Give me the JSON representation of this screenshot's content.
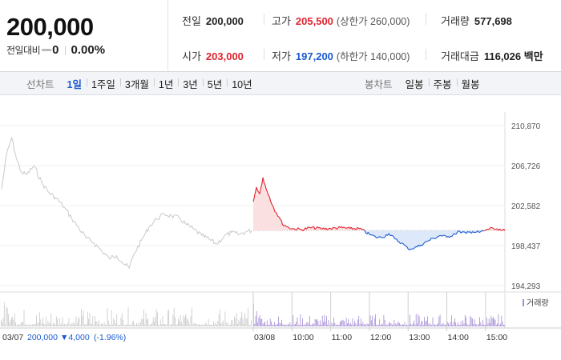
{
  "quote": {
    "price": "200,000",
    "change_label": "전일대비",
    "change_value": "0",
    "change_pct": "0.00%"
  },
  "stats": {
    "prev_close": {
      "label": "전일",
      "value": "200,000"
    },
    "high": {
      "label": "고가",
      "value": "205,500",
      "sub": "(상한가 260,000)"
    },
    "volume": {
      "label": "거래량",
      "value": "577,698"
    },
    "open": {
      "label": "시가",
      "value": "203,000"
    },
    "low": {
      "label": "저가",
      "value": "197,200",
      "sub": "(하한가 140,000)"
    },
    "amount": {
      "label": "거래대금",
      "value": "116,026 백만"
    }
  },
  "tabs": {
    "line_title": "선차트",
    "line_periods": [
      "1일",
      "1주일",
      "3개월",
      "1년",
      "3년",
      "5년",
      "10년"
    ],
    "candle_title": "봉차트",
    "candle_periods": [
      "일봉",
      "주봉",
      "월봉"
    ]
  },
  "chart_data": {
    "type": "line",
    "y_ticks": [
      "210,870",
      "206,726",
      "202,582",
      "198,437",
      "194,293"
    ],
    "ylim": [
      194293,
      210870
    ],
    "reference_price": 200000,
    "x_labels": [
      "03/07",
      "03/08",
      "10:00",
      "11:00",
      "12:00",
      "13:00",
      "14:00",
      "15:00"
    ],
    "prev_day_info": {
      "date": "03/07",
      "price": "200,000",
      "change": "▼4,000",
      "pct": "(-1.96%)"
    },
    "volume_legend": "거래량",
    "prev_day_series": [
      {
        "t": 0,
        "y": 204300
      },
      {
        "t": 0.02,
        "y": 207900
      },
      {
        "t": 0.04,
        "y": 209600
      },
      {
        "t": 0.06,
        "y": 207400
      },
      {
        "t": 0.08,
        "y": 206000
      },
      {
        "t": 0.1,
        "y": 205800
      },
      {
        "t": 0.13,
        "y": 206700
      },
      {
        "t": 0.16,
        "y": 205000
      },
      {
        "t": 0.19,
        "y": 203900
      },
      {
        "t": 0.22,
        "y": 203300
      },
      {
        "t": 0.25,
        "y": 202400
      },
      {
        "t": 0.28,
        "y": 201300
      },
      {
        "t": 0.31,
        "y": 200200
      },
      {
        "t": 0.34,
        "y": 199200
      },
      {
        "t": 0.37,
        "y": 198700
      },
      {
        "t": 0.4,
        "y": 197900
      },
      {
        "t": 0.43,
        "y": 197100
      },
      {
        "t": 0.46,
        "y": 197400
      },
      {
        "t": 0.48,
        "y": 196800
      },
      {
        "t": 0.51,
        "y": 196100
      },
      {
        "t": 0.53,
        "y": 197600
      },
      {
        "t": 0.56,
        "y": 199000
      },
      {
        "t": 0.59,
        "y": 200400
      },
      {
        "t": 0.62,
        "y": 201200
      },
      {
        "t": 0.65,
        "y": 201700
      },
      {
        "t": 0.68,
        "y": 201500
      },
      {
        "t": 0.71,
        "y": 201300
      },
      {
        "t": 0.74,
        "y": 200600
      },
      {
        "t": 0.77,
        "y": 200100
      },
      {
        "t": 0.8,
        "y": 199500
      },
      {
        "t": 0.83,
        "y": 199100
      },
      {
        "t": 0.86,
        "y": 198600
      },
      {
        "t": 0.89,
        "y": 199400
      },
      {
        "t": 0.92,
        "y": 199800
      },
      {
        "t": 0.95,
        "y": 199600
      },
      {
        "t": 0.98,
        "y": 199900
      },
      {
        "t": 1.0,
        "y": 200000
      }
    ],
    "today_series": [
      {
        "time": "09:00",
        "y": 203000
      },
      {
        "time": "09:05",
        "y": 204500
      },
      {
        "time": "09:10",
        "y": 203800
      },
      {
        "time": "09:15",
        "y": 205500
      },
      {
        "time": "09:20",
        "y": 204300
      },
      {
        "time": "09:25",
        "y": 203500
      },
      {
        "time": "09:30",
        "y": 202600
      },
      {
        "time": "09:35",
        "y": 201900
      },
      {
        "time": "09:40",
        "y": 201400
      },
      {
        "time": "09:45",
        "y": 200700
      },
      {
        "time": "09:50",
        "y": 200500
      },
      {
        "time": "09:55",
        "y": 200300
      },
      {
        "time": "10:00",
        "y": 200200
      },
      {
        "time": "10:15",
        "y": 200100
      },
      {
        "time": "10:30",
        "y": 200300
      },
      {
        "time": "10:45",
        "y": 200200
      },
      {
        "time": "11:00",
        "y": 200200
      },
      {
        "time": "11:15",
        "y": 200300
      },
      {
        "time": "11:30",
        "y": 200200
      },
      {
        "time": "11:45",
        "y": 200200
      },
      {
        "time": "12:00",
        "y": 199600
      },
      {
        "time": "12:10",
        "y": 199300
      },
      {
        "time": "12:20",
        "y": 199300
      },
      {
        "time": "12:30",
        "y": 199700
      },
      {
        "time": "12:40",
        "y": 199100
      },
      {
        "time": "12:50",
        "y": 198700
      },
      {
        "time": "13:00",
        "y": 198100
      },
      {
        "time": "13:10",
        "y": 198200
      },
      {
        "time": "13:20",
        "y": 198500
      },
      {
        "time": "13:30",
        "y": 198900
      },
      {
        "time": "13:40",
        "y": 199200
      },
      {
        "time": "13:50",
        "y": 199500
      },
      {
        "time": "14:00",
        "y": 199300
      },
      {
        "time": "14:10",
        "y": 199600
      },
      {
        "time": "14:20",
        "y": 199900
      },
      {
        "time": "14:30",
        "y": 199700
      },
      {
        "time": "14:40",
        "y": 199900
      },
      {
        "time": "14:50",
        "y": 199800
      },
      {
        "time": "15:00",
        "y": 200000
      },
      {
        "time": "15:10",
        "y": 200300
      },
      {
        "time": "15:20",
        "y": 200000
      },
      {
        "time": "15:30",
        "y": 200000
      }
    ]
  }
}
